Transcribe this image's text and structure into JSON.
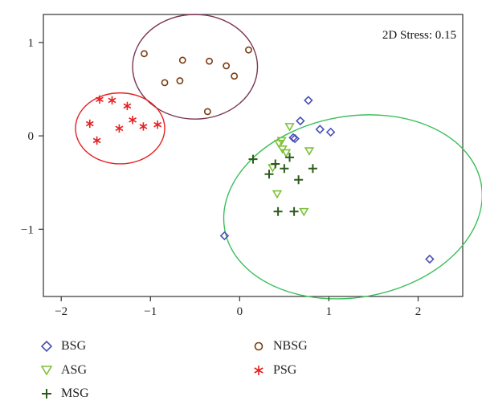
{
  "chart_data": {
    "type": "scatter",
    "title": "",
    "xlabel": "",
    "ylabel": "",
    "xlim": [
      -2.2,
      2.5
    ],
    "ylim": [
      -1.72,
      1.3
    ],
    "x_ticks": [
      -2,
      -1,
      0,
      1,
      2
    ],
    "y_ticks": [
      -1,
      0,
      1
    ],
    "annotation": "2D Stress: 0.15",
    "series": [
      {
        "name": "BSG",
        "marker": "diamond",
        "color": "#4a4fb5",
        "points": [
          [
            0.77,
            0.38
          ],
          [
            0.9,
            0.07
          ],
          [
            1.02,
            0.04
          ],
          [
            0.68,
            0.16
          ],
          [
            0.6,
            -0.02
          ],
          [
            0.62,
            -0.03
          ],
          [
            -0.17,
            -1.07
          ],
          [
            2.13,
            -1.32
          ]
        ]
      },
      {
        "name": "ASG",
        "marker": "triangle-down",
        "color": "#7ec13a",
        "points": [
          [
            0.56,
            0.1
          ],
          [
            0.47,
            -0.05
          ],
          [
            0.44,
            -0.08
          ],
          [
            0.48,
            -0.14
          ],
          [
            0.52,
            -0.18
          ],
          [
            0.78,
            -0.16
          ],
          [
            0.37,
            -0.34
          ],
          [
            0.42,
            -0.62
          ],
          [
            0.72,
            -0.81
          ]
        ]
      },
      {
        "name": "MSG",
        "marker": "plus",
        "color": "#2d5a1b",
        "points": [
          [
            0.15,
            -0.25
          ],
          [
            0.56,
            -0.23
          ],
          [
            0.4,
            -0.3
          ],
          [
            0.5,
            -0.35
          ],
          [
            0.82,
            -0.35
          ],
          [
            0.33,
            -0.41
          ],
          [
            0.66,
            -0.47
          ],
          [
            0.43,
            -0.81
          ],
          [
            0.61,
            -0.81
          ]
        ]
      },
      {
        "name": "NBSG",
        "marker": "circle",
        "color": "#7a3b10",
        "points": [
          [
            -1.07,
            0.88
          ],
          [
            -0.64,
            0.81
          ],
          [
            -0.34,
            0.8
          ],
          [
            0.1,
            0.92
          ],
          [
            -0.15,
            0.75
          ],
          [
            -0.84,
            0.57
          ],
          [
            -0.67,
            0.59
          ],
          [
            -0.06,
            0.64
          ],
          [
            -0.36,
            0.26
          ]
        ]
      },
      {
        "name": "PSG",
        "marker": "asterisk",
        "color": "#e52020",
        "points": [
          [
            -1.57,
            0.39
          ],
          [
            -1.43,
            0.38
          ],
          [
            -1.26,
            0.32
          ],
          [
            -1.68,
            0.13
          ],
          [
            -1.2,
            0.17
          ],
          [
            -1.08,
            0.1
          ],
          [
            -0.92,
            0.12
          ],
          [
            -1.35,
            0.08
          ],
          [
            -1.6,
            -0.05
          ]
        ]
      }
    ],
    "ellipses": [
      {
        "group": "NBSG",
        "color": "#7b3555",
        "cx": -0.5,
        "cy": 0.74,
        "rx": 0.7,
        "ry": 0.56
      },
      {
        "group": "PSG",
        "color": "#e52020",
        "cx": -1.34,
        "cy": 0.08,
        "rx": 0.5,
        "ry": 0.38
      },
      {
        "group": "BSG/ASG/MSG",
        "color": "#3cbf5a",
        "cx": 1.27,
        "cy": -0.76,
        "rx": 1.46,
        "ry": 0.97,
        "rotate": -10
      }
    ],
    "legend_position": "bottom"
  },
  "legend": {
    "items": [
      {
        "label": "BSG",
        "marker": "diamond",
        "color": "#4a4fb5"
      },
      {
        "label": "ASG",
        "marker": "triangle-down",
        "color": "#7ec13a"
      },
      {
        "label": "MSG",
        "marker": "plus",
        "color": "#2d5a1b"
      },
      {
        "label": "NBSG",
        "marker": "circle",
        "color": "#7a3b10"
      },
      {
        "label": "PSG",
        "marker": "asterisk",
        "color": "#e52020"
      }
    ]
  }
}
